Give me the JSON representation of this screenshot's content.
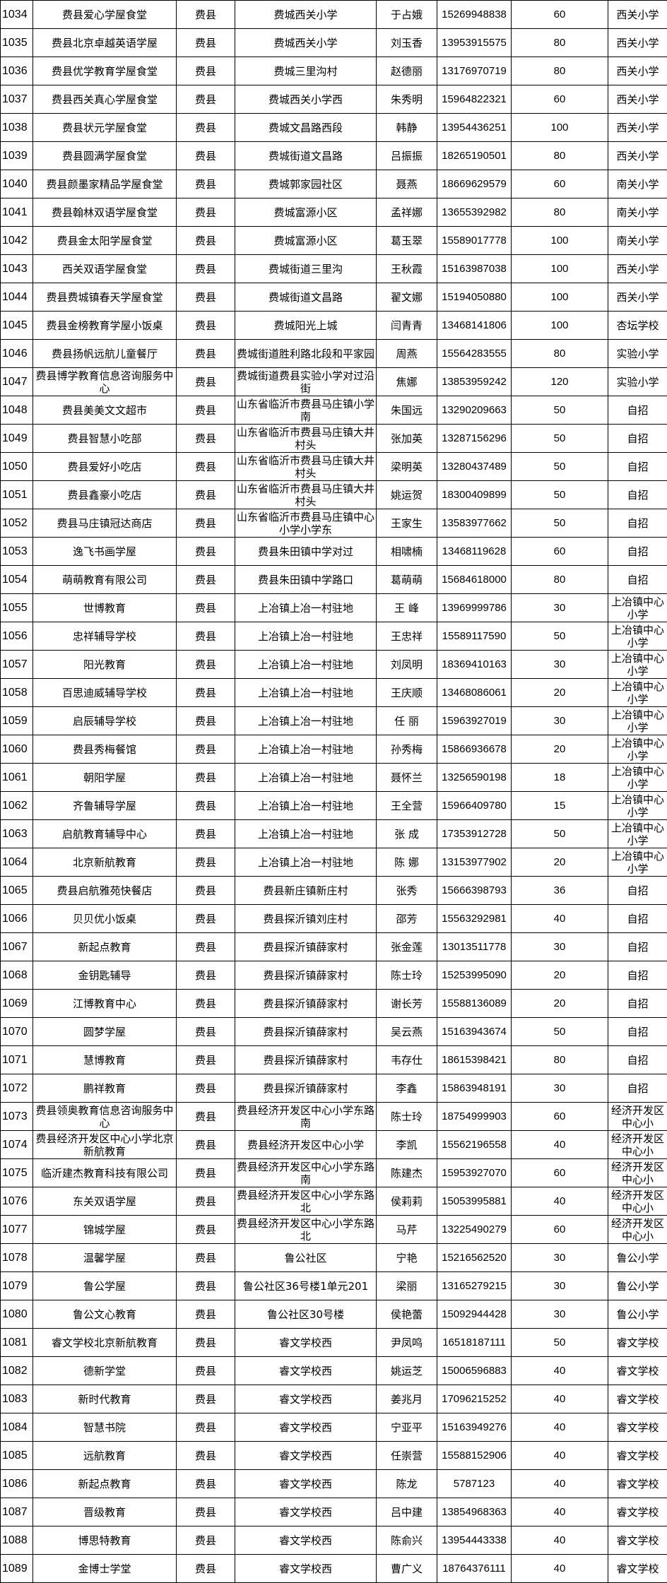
{
  "table": {
    "rows": [
      {
        "id": "1034",
        "name": "费县爱心学屋食堂",
        "county": "费县",
        "address": "费城西关小学",
        "contact": "于占娥",
        "phone": "15269948838",
        "count": "60",
        "school": "西关小学"
      },
      {
        "id": "1035",
        "name": "费县北京卓越英语学屋",
        "county": "费县",
        "address": "费城西关小学",
        "contact": "刘玉香",
        "phone": "13953915575",
        "count": "80",
        "school": "西关小学"
      },
      {
        "id": "1036",
        "name": "费县优学教育学屋食堂",
        "county": "费县",
        "address": "费城三里沟村",
        "contact": "赵德丽",
        "phone": "13176970719",
        "count": "80",
        "school": "西关小学"
      },
      {
        "id": "1037",
        "name": "费县西关真心学屋食堂",
        "county": "费县",
        "address": "费城西关小学西",
        "contact": "朱秀明",
        "phone": "15964822321",
        "count": "60",
        "school": "西关小学"
      },
      {
        "id": "1038",
        "name": "费县状元学屋食堂",
        "county": "费县",
        "address": "费城文昌路西段",
        "contact": "韩静",
        "phone": "13954436251",
        "count": "100",
        "school": "西关小学"
      },
      {
        "id": "1039",
        "name": "费县圆满学屋食堂",
        "county": "费县",
        "address": "费城街道文昌路",
        "contact": "吕振振",
        "phone": "18265190501",
        "count": "80",
        "school": "西关小学"
      },
      {
        "id": "1040",
        "name": "费县颜墨家精品学屋食堂",
        "county": "费县",
        "address": "费城郭家园社区",
        "contact": "聂燕",
        "phone": "18669629579",
        "count": "60",
        "school": "南关小学"
      },
      {
        "id": "1041",
        "name": "费县翰林双语学屋食堂",
        "county": "费县",
        "address": "费城富源小区",
        "contact": "孟祥娜",
        "phone": "13655392982",
        "count": "80",
        "school": "南关小学"
      },
      {
        "id": "1042",
        "name": "费县金太阳学屋食堂",
        "county": "费县",
        "address": "费城富源小区",
        "contact": "葛玉翠",
        "phone": "15589017778",
        "count": "100",
        "school": "南关小学"
      },
      {
        "id": "1043",
        "name": "西关双语学屋食堂",
        "county": "费县",
        "address": "费城街道三里沟",
        "contact": "王秋霞",
        "phone": "15163987038",
        "count": "100",
        "school": "西关小学"
      },
      {
        "id": "1044",
        "name": "费县费城镇春天学屋食堂",
        "county": "费县",
        "address": "费城街道文昌路",
        "contact": "翟文娜",
        "phone": "15194050880",
        "count": "100",
        "school": "西关小学"
      },
      {
        "id": "1045",
        "name": "费县金榜教育学屋小饭桌",
        "county": "费县",
        "address": "费城阳光上城",
        "contact": "闫青青",
        "phone": "13468141806",
        "count": "100",
        "school": "杏坛学校"
      },
      {
        "id": "1046",
        "name": "费县扬帆远航儿童餐厅",
        "county": "费县",
        "address": "费城街道胜利路北段和平家园",
        "contact": "周燕",
        "phone": "15564283555",
        "count": "80",
        "school": "实验小学"
      },
      {
        "id": "1047",
        "name": "费县博学教育信息咨询服务中心",
        "county": "费县",
        "address": "费城街道费县实验小学对过沿街",
        "contact": "焦娜",
        "phone": "13853959242",
        "count": "120",
        "school": "实验小学"
      },
      {
        "id": "1048",
        "name": "费县美美文文超市",
        "county": "费县",
        "address": "山东省临沂市费县马庄镇小学南",
        "contact": "朱国远",
        "phone": "13290209663",
        "count": "50",
        "school": "自招"
      },
      {
        "id": "1049",
        "name": "费县智慧小吃部",
        "county": "费县",
        "address": "山东省临沂市费县马庄镇大井村头",
        "contact": "张加英",
        "phone": "13287156296",
        "count": "50",
        "school": "自招"
      },
      {
        "id": "1050",
        "name": "费县爱好小吃店",
        "county": "费县",
        "address": "山东省临沂市费县马庄镇大井村头",
        "contact": "梁明英",
        "phone": "13280437489",
        "count": "50",
        "school": "自招"
      },
      {
        "id": "1051",
        "name": "费县鑫豪小吃店",
        "county": "费县",
        "address": "山东省临沂市费县马庄镇大井村头",
        "contact": "姚运贺",
        "phone": "18300409899",
        "count": "50",
        "school": "自招"
      },
      {
        "id": "1052",
        "name": "费县马庄镇冠达商店",
        "county": "费县",
        "address": "山东省临沂市费县马庄镇中心小学小学东",
        "contact": "王家生",
        "phone": "13583977662",
        "count": "50",
        "school": "自招"
      },
      {
        "id": "1053",
        "name": "逸飞书画学屋",
        "county": "费县",
        "address": "费县朱田镇中学对过",
        "contact": "相啸楠",
        "phone": "13468119628",
        "count": "60",
        "school": "自招"
      },
      {
        "id": "1054",
        "name": "萌萌教育有限公司",
        "county": "费县",
        "address": "费县朱田镇中学路口",
        "contact": "葛萌萌",
        "phone": "15684618000",
        "count": "80",
        "school": "自招"
      },
      {
        "id": "1055",
        "name": "世博教育",
        "county": "费县",
        "address": "上冶镇上冶一村驻地",
        "contact": "王 峰",
        "phone": "13969999786",
        "count": "30",
        "school": "上冶镇中心小学"
      },
      {
        "id": "1056",
        "name": "忠祥辅导学校",
        "county": "费县",
        "address": "上冶镇上冶一村驻地",
        "contact": "王忠祥",
        "phone": "15589117590",
        "count": "50",
        "school": "上冶镇中心小学"
      },
      {
        "id": "1057",
        "name": "阳光教育",
        "county": "费县",
        "address": "上冶镇上冶一村驻地",
        "contact": "刘凤明",
        "phone": "18369410163",
        "count": "30",
        "school": "上冶镇中心小学"
      },
      {
        "id": "1058",
        "name": "百思迪威辅导学校",
        "county": "费县",
        "address": "上冶镇上冶一村驻地",
        "contact": "王庆顺",
        "phone": "13468086061",
        "count": "20",
        "school": "上冶镇中心小学"
      },
      {
        "id": "1059",
        "name": "启辰辅导学校",
        "county": "费县",
        "address": "上冶镇上冶一村驻地",
        "contact": "任 丽",
        "phone": "15963927019",
        "count": "30",
        "school": "上冶镇中心小学"
      },
      {
        "id": "1060",
        "name": "费县秀梅餐馆",
        "county": "费县",
        "address": "上冶镇上冶一村驻地",
        "contact": "孙秀梅",
        "phone": "15866936678",
        "count": "20",
        "school": "上冶镇中心小学"
      },
      {
        "id": "1061",
        "name": "朝阳学屋",
        "county": "费县",
        "address": "上冶镇上冶一村驻地",
        "contact": "聂怀兰",
        "phone": "13256590198",
        "count": "18",
        "school": "上冶镇中心小学"
      },
      {
        "id": "1062",
        "name": "齐鲁辅导学屋",
        "county": "费县",
        "address": "上冶镇上冶一村驻地",
        "contact": "王全营",
        "phone": "15966409780",
        "count": "15",
        "school": "上冶镇中心小学"
      },
      {
        "id": "1063",
        "name": "启航教育辅导中心",
        "county": "费县",
        "address": "上冶镇上冶一村驻地",
        "contact": "张 成",
        "phone": "17353912728",
        "count": "50",
        "school": "上冶镇中心小学"
      },
      {
        "id": "1064",
        "name": "北京新航教育",
        "county": "费县",
        "address": "上冶镇上冶一村驻地",
        "contact": "陈 娜",
        "phone": "13153977902",
        "count": "20",
        "school": "上冶镇中心小学"
      },
      {
        "id": "1065",
        "name": "费县启航雅苑快餐店",
        "county": "费县",
        "address": "费县新庄镇新庄村",
        "contact": "张秀",
        "phone": "15666398793",
        "count": "36",
        "school": "自招"
      },
      {
        "id": "1066",
        "name": "贝贝优小饭桌",
        "county": "费县",
        "address": "费县探沂镇刘庄村",
        "contact": "邵芳",
        "phone": "15563292981",
        "count": "40",
        "school": "自招"
      },
      {
        "id": "1067",
        "name": "新起点教育",
        "county": "费县",
        "address": "费县探沂镇薛家村",
        "contact": "张金莲",
        "phone": "13013511778",
        "count": "30",
        "school": "自招"
      },
      {
        "id": "1068",
        "name": "金钥匙辅导",
        "county": "费县",
        "address": "费县探沂镇薛家村",
        "contact": "陈士玲",
        "phone": "15253995090",
        "count": "20",
        "school": "自招"
      },
      {
        "id": "1069",
        "name": "江博教育中心",
        "county": "费县",
        "address": "费县探沂镇薛家村",
        "contact": "谢长芳",
        "phone": "15588136089",
        "count": "20",
        "school": "自招"
      },
      {
        "id": "1070",
        "name": "圆梦学屋",
        "county": "费县",
        "address": "费县探沂镇薛家村",
        "contact": "吴云燕",
        "phone": "15163943674",
        "count": "50",
        "school": "自招"
      },
      {
        "id": "1071",
        "name": "慧博教育",
        "county": "费县",
        "address": "费县探沂镇薛家村",
        "contact": "韦存仕",
        "phone": "18615398421",
        "count": "80",
        "school": "自招"
      },
      {
        "id": "1072",
        "name": "鹏祥教育",
        "county": "费县",
        "address": "费县探沂镇薛家村",
        "contact": "李鑫",
        "phone": "15863948191",
        "count": "30",
        "school": "自招"
      },
      {
        "id": "1073",
        "name": "费县领奥教育信息咨询服务中心",
        "county": "费县",
        "address": "费县经济开发区中心小学东路南",
        "contact": "陈士玲",
        "phone": "18754999903",
        "count": "60",
        "school": "经济开发区中心小"
      },
      {
        "id": "1074",
        "name": "费县经济开发区中心小学北京新航教育",
        "county": "费县",
        "address": "费县经济开发区中心小学",
        "contact": "李凯",
        "phone": "15562196558",
        "count": "40",
        "school": "经济开发区中心小"
      },
      {
        "id": "1075",
        "name": "临沂建杰教育科技有限公司",
        "county": "费县",
        "address": "费县经济开发区中心小学东路南",
        "contact": "陈建杰",
        "phone": "15953927070",
        "count": "60",
        "school": "经济开发区中心小"
      },
      {
        "id": "1076",
        "name": "东关双语学屋",
        "county": "费县",
        "address": "费县经济开发区中心小学东路北",
        "contact": "侯莉莉",
        "phone": "15053995881",
        "count": "40",
        "school": "经济开发区中心小"
      },
      {
        "id": "1077",
        "name": "锦城学屋",
        "county": "费县",
        "address": "费县经济开发区中心小学东路北",
        "contact": "马芹",
        "phone": "13225490279",
        "count": "60",
        "school": "经济开发区中心小"
      },
      {
        "id": "1078",
        "name": "温馨学屋",
        "county": "费县",
        "address": "鲁公社区",
        "contact": "宁艳",
        "phone": "15216562520",
        "count": "30",
        "school": "鲁公小学"
      },
      {
        "id": "1079",
        "name": "鲁公学屋",
        "county": "费县",
        "address": "鲁公社区36号楼1单元201",
        "contact": "梁丽",
        "phone": "13165279215",
        "count": "30",
        "school": "鲁公小学"
      },
      {
        "id": "1080",
        "name": "鲁公文心教育",
        "county": "费县",
        "address": "鲁公社区30号楼",
        "contact": "侯艳蕾",
        "phone": "15092944428",
        "count": "30",
        "school": "鲁公小学"
      },
      {
        "id": "1081",
        "name": "睿文学校北京新航教育",
        "county": "费县",
        "address": "睿文学校西",
        "contact": "尹凤鸣",
        "phone": "16518187111",
        "count": "50",
        "school": "睿文学校"
      },
      {
        "id": "1082",
        "name": "德新学堂",
        "county": "费县",
        "address": "睿文学校西",
        "contact": "姚运芝",
        "phone": "15006596883",
        "count": "40",
        "school": "睿文学校"
      },
      {
        "id": "1083",
        "name": "新时代教育",
        "county": "费县",
        "address": "睿文学校西",
        "contact": "姜兆月",
        "phone": "17096215252",
        "count": "40",
        "school": "睿文学校"
      },
      {
        "id": "1084",
        "name": "智慧书院",
        "county": "费县",
        "address": "睿文学校西",
        "contact": "宁亚平",
        "phone": "15163949276",
        "count": "40",
        "school": "睿文学校"
      },
      {
        "id": "1085",
        "name": "远航教育",
        "county": "费县",
        "address": "睿文学校西",
        "contact": "任崇营",
        "phone": "15588152906",
        "count": "40",
        "school": "睿文学校"
      },
      {
        "id": "1086",
        "name": "新起点教育",
        "county": "费县",
        "address": "睿文学校西",
        "contact": "陈龙",
        "phone": "5787123",
        "count": "40",
        "school": "睿文学校"
      },
      {
        "id": "1087",
        "name": "晋级教育",
        "county": "费县",
        "address": "睿文学校西",
        "contact": "吕中建",
        "phone": "13854968363",
        "count": "40",
        "school": "睿文学校"
      },
      {
        "id": "1088",
        "name": "博思特教育",
        "county": "费县",
        "address": "睿文学校西",
        "contact": "陈俞兴",
        "phone": "13954443338",
        "count": "40",
        "school": "睿文学校"
      },
      {
        "id": "1089",
        "name": "金博士学堂",
        "county": "费县",
        "address": "睿文学校西",
        "contact": "曹广义",
        "phone": "18764376111",
        "count": "40",
        "school": "睿文学校"
      }
    ]
  }
}
